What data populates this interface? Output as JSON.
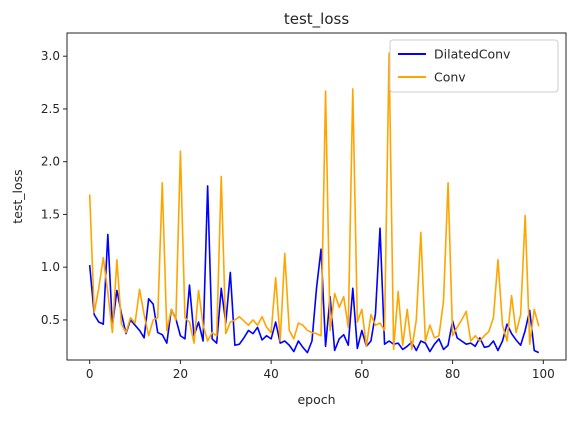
{
  "chart_data": {
    "type": "line",
    "title": "test_loss",
    "xlabel": "epoch",
    "ylabel": "test_loss",
    "xlim": [
      -5,
      105
    ],
    "ylim": [
      0.12,
      3.22
    ],
    "xticks": [
      0,
      20,
      40,
      60,
      80,
      100
    ],
    "yticks": [
      0.5,
      1.0,
      1.5,
      2.0,
      2.5,
      3.0
    ],
    "xtick_labels": [
      "0",
      "20",
      "40",
      "60",
      "80",
      "100"
    ],
    "ytick_labels": [
      "0.5",
      "1.0",
      "1.5",
      "2.0",
      "2.5",
      "3.0"
    ],
    "grid": false,
    "legend_position": "top-right",
    "x": [
      0,
      1,
      2,
      3,
      4,
      5,
      6,
      7,
      8,
      9,
      10,
      11,
      12,
      13,
      14,
      15,
      16,
      17,
      18,
      19,
      20,
      21,
      22,
      23,
      24,
      25,
      26,
      27,
      28,
      29,
      30,
      31,
      32,
      33,
      34,
      35,
      36,
      37,
      38,
      39,
      40,
      41,
      42,
      43,
      44,
      45,
      46,
      47,
      48,
      49,
      50,
      51,
      52,
      53,
      54,
      55,
      56,
      57,
      58,
      59,
      60,
      61,
      62,
      63,
      64,
      65,
      66,
      67,
      68,
      69,
      70,
      71,
      72,
      73,
      74,
      75,
      76,
      77,
      78,
      79,
      80,
      81,
      82,
      83,
      84,
      85,
      86,
      87,
      88,
      89,
      90,
      91,
      92,
      93,
      94,
      95,
      96,
      97,
      98,
      99
    ],
    "series": [
      {
        "name": "DilatedConv",
        "color": "#0000ff",
        "values": [
          1.02,
          0.55,
          0.48,
          0.46,
          1.31,
          0.44,
          0.78,
          0.56,
          0.37,
          0.5,
          0.45,
          0.4,
          0.33,
          0.7,
          0.65,
          0.38,
          0.36,
          0.28,
          0.6,
          0.51,
          0.35,
          0.32,
          0.83,
          0.35,
          0.48,
          0.3,
          1.77,
          0.32,
          0.28,
          0.8,
          0.47,
          0.95,
          0.26,
          0.27,
          0.33,
          0.4,
          0.37,
          0.43,
          0.31,
          0.35,
          0.32,
          0.48,
          0.28,
          0.3,
          0.26,
          0.2,
          0.3,
          0.24,
          0.19,
          0.3,
          0.8,
          1.17,
          0.25,
          0.72,
          0.21,
          0.32,
          0.36,
          0.26,
          0.8,
          0.23,
          0.4,
          0.25,
          0.3,
          0.56,
          1.37,
          0.27,
          0.3,
          0.27,
          0.28,
          0.22,
          0.25,
          0.29,
          0.21,
          0.3,
          0.28,
          0.2,
          0.27,
          0.32,
          0.22,
          0.26,
          0.49,
          0.33,
          0.3,
          0.27,
          0.28,
          0.25,
          0.33,
          0.24,
          0.25,
          0.3,
          0.21,
          0.3,
          0.46,
          0.37,
          0.31,
          0.26,
          0.4,
          0.59,
          0.21,
          0.19
        ]
      },
      {
        "name": "Conv",
        "color": "#ffa500",
        "values": [
          1.69,
          0.57,
          0.8,
          1.09,
          0.76,
          0.38,
          1.07,
          0.46,
          0.38,
          0.52,
          0.47,
          0.79,
          0.55,
          0.35,
          0.5,
          0.52,
          1.8,
          0.4,
          0.6,
          0.5,
          2.1,
          0.52,
          0.48,
          0.28,
          0.78,
          0.45,
          0.3,
          0.38,
          0.35,
          1.86,
          0.37,
          0.48,
          0.5,
          0.53,
          0.49,
          0.45,
          0.5,
          0.45,
          0.53,
          0.43,
          0.38,
          0.9,
          0.3,
          1.13,
          0.4,
          0.32,
          0.47,
          0.45,
          0.4,
          0.38,
          0.37,
          0.35,
          2.67,
          0.4,
          0.75,
          0.62,
          0.72,
          0.43,
          2.69,
          0.48,
          0.6,
          0.25,
          0.55,
          0.45,
          0.47,
          0.4,
          3.03,
          0.22,
          0.77,
          0.26,
          0.6,
          0.22,
          0.5,
          1.33,
          0.3,
          0.45,
          0.33,
          0.35,
          0.68,
          1.8,
          0.35,
          0.43,
          0.5,
          0.58,
          0.3,
          0.35,
          0.3,
          0.35,
          0.39,
          0.52,
          1.07,
          0.45,
          0.3,
          0.73,
          0.38,
          0.55,
          1.49,
          0.27,
          0.6,
          0.44
        ]
      }
    ]
  },
  "colors": {
    "axes_edge": "#262626",
    "text": "#262626",
    "legend_border": "#cccccc",
    "background": "#ffffff"
  }
}
